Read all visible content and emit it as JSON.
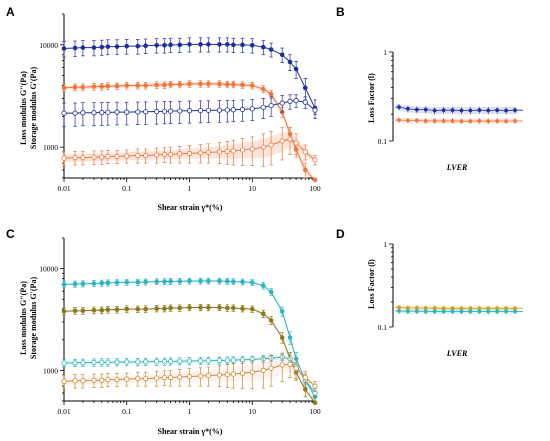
{
  "chart_data": [
    {
      "panel": "A",
      "type": "line",
      "xscale": "log",
      "yscale": "log",
      "xlim": [
        0.01,
        100
      ],
      "ylim": [
        500,
        20000
      ],
      "x_ticks": [
        "0.01",
        "0.1",
        "1",
        "10",
        "100"
      ],
      "y_ticks": [
        {
          "v": 1000,
          "t": "1000"
        },
        {
          "v": 10000,
          "t": "10000"
        }
      ],
      "xlabel": "Shear strain γ*(%)",
      "ylabel_lines": [
        "Storage modulus G'(Pa)",
        "Loss modulus G\"(Pa)"
      ],
      "series": [
        {
          "color": "#1f2d9e",
          "marker": "filled",
          "band": false,
          "x": [
            0.01,
            0.015,
            0.02,
            0.03,
            0.04,
            0.05,
            0.07,
            0.1,
            0.15,
            0.2,
            0.3,
            0.4,
            0.5,
            0.7,
            1,
            1.5,
            2,
            3,
            4,
            5,
            7,
            10,
            15,
            20,
            30,
            40,
            50,
            70,
            100
          ],
          "y": [
            9200,
            9300,
            9400,
            9400,
            9500,
            9600,
            9600,
            9700,
            9700,
            9800,
            9900,
            9900,
            10000,
            10000,
            10100,
            10100,
            10100,
            10100,
            10100,
            10000,
            10000,
            9900,
            9500,
            9000,
            8000,
            6800,
            5800,
            3800,
            2400
          ],
          "err": [
            1600,
            1600,
            1600,
            1600,
            1600,
            1600,
            1600,
            1600,
            1600,
            1600,
            1600,
            1600,
            1600,
            1600,
            1600,
            1600,
            1600,
            1600,
            1600,
            1600,
            1600,
            1600,
            1500,
            1400,
            1300,
            1200,
            1100,
            900,
            500
          ]
        },
        {
          "color": "#f0743c",
          "marker": "filled",
          "band": true,
          "x": [
            0.01,
            0.015,
            0.02,
            0.03,
            0.04,
            0.05,
            0.07,
            0.1,
            0.15,
            0.2,
            0.3,
            0.4,
            0.5,
            0.7,
            1,
            1.5,
            2,
            3,
            4,
            5,
            7,
            10,
            15,
            20,
            30,
            40,
            50,
            70,
            100
          ],
          "y": [
            3800,
            3850,
            3850,
            3900,
            3900,
            3950,
            3950,
            4000,
            4000,
            4000,
            4050,
            4050,
            4100,
            4100,
            4150,
            4150,
            4150,
            4150,
            4100,
            4100,
            4050,
            4000,
            3700,
            3300,
            2200,
            1350,
            950,
            600,
            420
          ],
          "err": [
            300,
            300,
            300,
            300,
            300,
            300,
            300,
            300,
            300,
            300,
            300,
            300,
            300,
            300,
            300,
            300,
            300,
            300,
            300,
            300,
            300,
            300,
            300,
            300,
            250,
            200,
            150,
            100,
            80
          ]
        },
        {
          "color": "#1f2d9e",
          "marker": "open",
          "band": false,
          "x": [
            0.01,
            0.015,
            0.02,
            0.03,
            0.04,
            0.05,
            0.07,
            0.1,
            0.15,
            0.2,
            0.3,
            0.4,
            0.5,
            0.7,
            1,
            1.5,
            2,
            3,
            4,
            5,
            7,
            10,
            15,
            20,
            30,
            40,
            50,
            70,
            100
          ],
          "y": [
            2150,
            2150,
            2170,
            2170,
            2180,
            2190,
            2200,
            2200,
            2210,
            2220,
            2230,
            2240,
            2250,
            2260,
            2270,
            2280,
            2290,
            2300,
            2310,
            2320,
            2340,
            2370,
            2450,
            2550,
            2700,
            2800,
            2850,
            2750,
            2300
          ],
          "err": [
            550,
            550,
            550,
            550,
            550,
            550,
            550,
            550,
            550,
            550,
            550,
            550,
            550,
            550,
            550,
            550,
            550,
            550,
            550,
            550,
            550,
            550,
            550,
            550,
            500,
            450,
            400,
            350,
            200
          ]
        },
        {
          "color": "#f0743c",
          "marker": "open",
          "band": true,
          "x": [
            0.01,
            0.015,
            0.02,
            0.03,
            0.04,
            0.05,
            0.07,
            0.1,
            0.15,
            0.2,
            0.3,
            0.4,
            0.5,
            0.7,
            1,
            1.5,
            2,
            3,
            4,
            5,
            7,
            10,
            15,
            20,
            30,
            40,
            50,
            70,
            100
          ],
          "y": [
            780,
            790,
            790,
            800,
            800,
            810,
            810,
            820,
            830,
            830,
            840,
            850,
            850,
            860,
            870,
            880,
            890,
            900,
            910,
            920,
            940,
            960,
            1000,
            1050,
            1150,
            1200,
            1100,
            900,
            750
          ],
          "err": [
            120,
            120,
            120,
            120,
            120,
            120,
            120,
            120,
            130,
            130,
            140,
            140,
            150,
            160,
            170,
            180,
            190,
            210,
            230,
            250,
            280,
            300,
            350,
            380,
            400,
            350,
            250,
            150,
            80
          ]
        }
      ]
    },
    {
      "panel": "B",
      "type": "line",
      "xscale": "linear",
      "yscale": "log",
      "ylim": [
        0.1,
        1
      ],
      "y_ticks": [
        {
          "v": 0.1,
          "t": "0.1"
        },
        {
          "v": 1,
          "t": "1"
        }
      ],
      "xlabel": "LVER",
      "ylabel": "Loss Factor (l)",
      "series": [
        {
          "color": "#1f2d9e",
          "values": [
            0.24,
            0.23,
            0.225,
            0.225,
            0.22,
            0.222,
            0.222,
            0.22,
            0.22,
            0.222,
            0.22,
            0.222,
            0.22,
            0.222
          ],
          "err": 0.02
        },
        {
          "color": "#f0743c",
          "values": [
            0.172,
            0.17,
            0.17,
            0.168,
            0.168,
            0.168,
            0.168,
            0.167,
            0.167,
            0.168,
            0.167,
            0.168,
            0.167,
            0.168
          ],
          "err": 0.012
        }
      ]
    },
    {
      "panel": "C",
      "type": "line",
      "xscale": "log",
      "yscale": "log",
      "xlim": [
        0.01,
        100
      ],
      "ylim": [
        500,
        20000
      ],
      "x_ticks": [
        "0.01",
        "0.1",
        "1",
        "10",
        "100"
      ],
      "y_ticks": [
        {
          "v": 1000,
          "t": "1000"
        },
        {
          "v": 10000,
          "t": "10000"
        }
      ],
      "xlabel": "Shear strain γ*(%)",
      "ylabel_lines": [
        "Storage modulus G'(Pa)",
        "Loss modulus G\"(Pa)"
      ],
      "series": [
        {
          "color": "#2fb3bf",
          "marker": "filled",
          "band": true,
          "band_color": "#8fe3ea",
          "x": [
            0.01,
            0.015,
            0.02,
            0.03,
            0.04,
            0.05,
            0.07,
            0.1,
            0.15,
            0.2,
            0.3,
            0.4,
            0.5,
            0.7,
            1,
            1.5,
            2,
            3,
            4,
            5,
            7,
            10,
            15,
            20,
            30,
            40,
            50,
            70,
            100
          ],
          "y": [
            7000,
            7050,
            7100,
            7150,
            7200,
            7250,
            7300,
            7350,
            7350,
            7400,
            7450,
            7450,
            7500,
            7500,
            7550,
            7550,
            7550,
            7550,
            7500,
            7450,
            7400,
            7300,
            6800,
            5900,
            3800,
            2100,
            1300,
            800,
            550
          ],
          "err": [
            500,
            500,
            500,
            500,
            500,
            500,
            500,
            500,
            500,
            500,
            500,
            500,
            500,
            500,
            500,
            500,
            500,
            500,
            500,
            500,
            500,
            500,
            500,
            450,
            400,
            300,
            200,
            120,
            80
          ]
        },
        {
          "color": "#8a7a1a",
          "marker": "filled",
          "band": true,
          "band_color": "#f5b8c4",
          "x": [
            0.01,
            0.015,
            0.02,
            0.03,
            0.04,
            0.05,
            0.07,
            0.1,
            0.15,
            0.2,
            0.3,
            0.4,
            0.5,
            0.7,
            1,
            1.5,
            2,
            3,
            4,
            5,
            7,
            10,
            15,
            20,
            30,
            40,
            50,
            70,
            100
          ],
          "y": [
            3800,
            3850,
            3850,
            3900,
            3900,
            3950,
            3950,
            4000,
            4000,
            4000,
            4050,
            4050,
            4100,
            4100,
            4150,
            4150,
            4150,
            4150,
            4100,
            4100,
            4050,
            4000,
            3600,
            3100,
            2100,
            1300,
            950,
            650,
            480
          ],
          "err": [
            300,
            300,
            300,
            300,
            300,
            300,
            300,
            300,
            300,
            300,
            300,
            300,
            300,
            300,
            300,
            300,
            300,
            300,
            300,
            300,
            300,
            300,
            300,
            280,
            250,
            200,
            150,
            100,
            80
          ]
        },
        {
          "color": "#2fb3bf",
          "marker": "open",
          "band": true,
          "band_color": "#8fe3ea",
          "x": [
            0.01,
            0.015,
            0.02,
            0.03,
            0.04,
            0.05,
            0.07,
            0.1,
            0.15,
            0.2,
            0.3,
            0.4,
            0.5,
            0.7,
            1,
            1.5,
            2,
            3,
            4,
            5,
            7,
            10,
            15,
            20,
            30,
            40,
            50,
            70,
            100
          ],
          "y": [
            1180,
            1185,
            1190,
            1195,
            1200,
            1200,
            1205,
            1210,
            1210,
            1215,
            1220,
            1220,
            1225,
            1230,
            1235,
            1240,
            1245,
            1250,
            1255,
            1260,
            1270,
            1280,
            1300,
            1320,
            1350,
            1300,
            1100,
            800,
            600
          ],
          "err": [
            100,
            100,
            100,
            100,
            100,
            100,
            100,
            100,
            100,
            100,
            100,
            100,
            100,
            100,
            100,
            100,
            100,
            100,
            100,
            100,
            100,
            100,
            100,
            100,
            100,
            100,
            100,
            80,
            60
          ]
        },
        {
          "color": "#d08a2a",
          "marker": "open",
          "band": true,
          "band_color": "#f5b8c4",
          "x": [
            0.01,
            0.015,
            0.02,
            0.03,
            0.04,
            0.05,
            0.07,
            0.1,
            0.15,
            0.2,
            0.3,
            0.4,
            0.5,
            0.7,
            1,
            1.5,
            2,
            3,
            4,
            5,
            7,
            10,
            15,
            20,
            30,
            40,
            50,
            70,
            100
          ],
          "y": [
            780,
            790,
            790,
            800,
            800,
            810,
            810,
            820,
            830,
            830,
            840,
            850,
            850,
            860,
            870,
            880,
            890,
            900,
            910,
            920,
            940,
            960,
            1000,
            1050,
            1130,
            1150,
            1050,
            850,
            700
          ],
          "err": [
            120,
            120,
            120,
            120,
            120,
            120,
            120,
            120,
            130,
            130,
            140,
            140,
            150,
            160,
            170,
            180,
            190,
            210,
            230,
            250,
            280,
            300,
            330,
            350,
            350,
            300,
            220,
            130,
            80
          ]
        }
      ]
    },
    {
      "panel": "D",
      "type": "line",
      "xscale": "linear",
      "yscale": "log",
      "ylim": [
        0.1,
        1
      ],
      "y_ticks": [
        {
          "v": 0.1,
          "t": "0.1"
        },
        {
          "v": 1,
          "t": "1"
        }
      ],
      "xlabel": "LVER",
      "ylabel": "Loss Factor (l)",
      "series": [
        {
          "color": "#d4a017",
          "values": [
            0.172,
            0.17,
            0.17,
            0.169,
            0.169,
            0.168,
            0.168,
            0.168,
            0.168,
            0.168,
            0.168,
            0.168,
            0.168,
            0.168
          ],
          "err": 0.012
        },
        {
          "color": "#2fb3bf",
          "values": [
            0.156,
            0.155,
            0.155,
            0.154,
            0.154,
            0.154,
            0.154,
            0.154,
            0.154,
            0.154,
            0.154,
            0.154,
            0.154,
            0.154
          ],
          "err": 0.012
        }
      ]
    }
  ]
}
